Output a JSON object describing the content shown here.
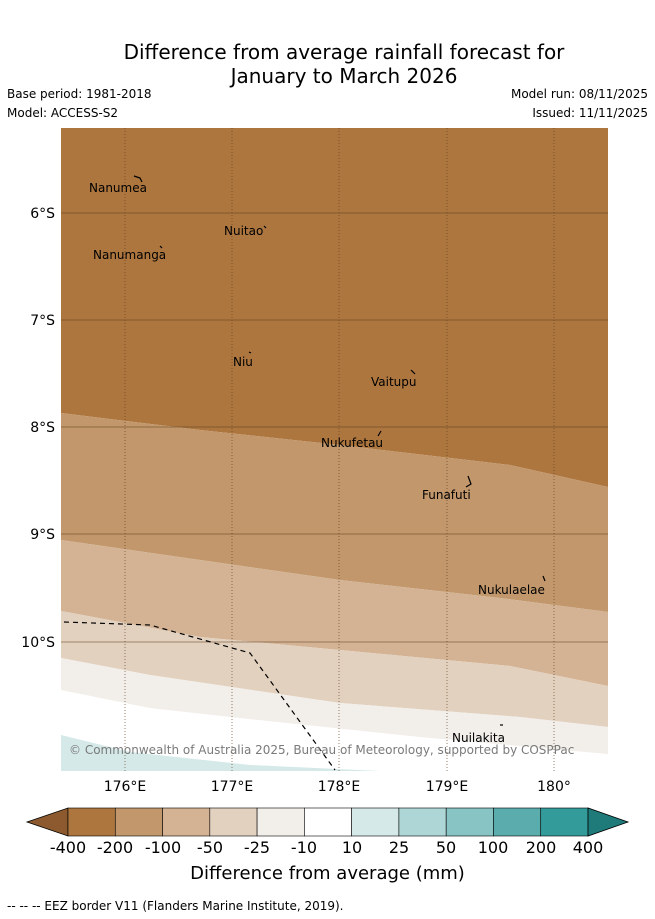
{
  "header": {
    "title_line1": "Difference from average rainfall forecast for",
    "title_line2": "January to March 2026",
    "base_period": "Base period: 1981-2018",
    "model": "Model: ACCESS-S2",
    "model_run": "Model run: 08/11/2025",
    "issued": "Issued: 11/11/2025"
  },
  "map": {
    "lat_labels": [
      "6°S",
      "7°S",
      "8°S",
      "9°S",
      "10°S"
    ],
    "lon_labels": [
      "176°E",
      "177°E",
      "178°E",
      "179°E",
      "180°"
    ],
    "places": [
      "Nanumea",
      "Nuitao",
      "Nanumanga",
      "Niu",
      "Vaitupu",
      "Nukufetau",
      "Funafuti",
      "Nukulaelae",
      "Nuilakita"
    ],
    "copyright": "© Commonwealth of Australia 2025, Bureau of Meteorology, supported by COSPPac"
  },
  "colorbar": {
    "labels": [
      "-400",
      "-200",
      "-100",
      "-50",
      "-25",
      "-10",
      "10",
      "25",
      "50",
      "100",
      "200",
      "400"
    ],
    "colors": [
      "#8c5a2e",
      "#ad763f",
      "#c2976b",
      "#d3b394",
      "#e3d1bf",
      "#f2eee9",
      "#ffffff",
      "#d4e9e8",
      "#aed6d6",
      "#88c4c4",
      "#5badad",
      "#349b9b",
      "#1f7a7a"
    ],
    "title": "Difference from average (mm)"
  },
  "footer": {
    "eez_note": "--  --  -- EEZ border V11 (Flanders Marine Institute, 2019)."
  }
}
